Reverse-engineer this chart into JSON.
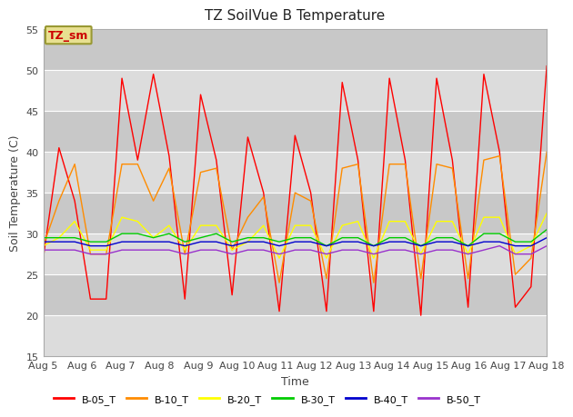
{
  "title": "TZ SoilVue B Temperature",
  "xlabel": "Time",
  "ylabel": "Soil Temperature (C)",
  "ylim": [
    15,
    55
  ],
  "xlim": [
    0,
    13
  ],
  "plot_bg_color": "#dcdcdc",
  "alt_bg_color": "#c8c8c8",
  "grid_color": "#ffffff",
  "x_tick_labels": [
    "Aug 5",
    "Aug 6",
    "Aug 7",
    "Aug 8",
    "Aug 9",
    "Aug 10",
    "Aug 11",
    "Aug 12",
    "Aug 13",
    "Aug 14",
    "Aug 15",
    "Aug 16",
    "Aug 17",
    "Aug 18"
  ],
  "legend_entries": [
    "B-05_T",
    "B-10_T",
    "B-20_T",
    "B-30_T",
    "B-40_T",
    "B-50_T"
  ],
  "line_colors": [
    "#ff0000",
    "#ff8c00",
    "#ffff00",
    "#00cc00",
    "#0000cd",
    "#9932cc"
  ],
  "annotation_text": "TZ_sm",
  "annotation_fg": "#cc0000",
  "annotation_bg": "#e8e090",
  "annotation_edge": "#999933",
  "title_fontsize": 11,
  "axis_label_fontsize": 9,
  "tick_fontsize": 8,
  "series": {
    "B05": [
      27.0,
      40.5,
      34.0,
      22.0,
      22.0,
      49.0,
      39.0,
      49.5,
      39.5,
      22.0,
      47.0,
      39.0,
      22.5,
      41.8,
      35.0,
      20.5,
      42.0,
      35.0,
      20.5,
      48.5,
      39.0,
      20.5,
      49.0,
      39.0,
      20.0,
      49.0,
      39.0,
      21.0,
      49.5,
      40.0,
      21.0,
      23.5,
      50.5
    ],
    "B10": [
      28.5,
      34.0,
      38.5,
      27.5,
      27.5,
      38.5,
      38.5,
      34.0,
      38.0,
      27.5,
      37.5,
      38.0,
      28.0,
      32.0,
      34.5,
      24.0,
      35.0,
      34.0,
      24.5,
      38.0,
      38.5,
      24.0,
      38.5,
      38.5,
      24.5,
      38.5,
      38.0,
      24.5,
      39.0,
      39.5,
      25.0,
      27.0,
      40.0
    ],
    "B20": [
      28.5,
      29.5,
      31.5,
      28.0,
      28.0,
      32.0,
      31.5,
      29.5,
      31.0,
      28.0,
      31.0,
      31.0,
      28.0,
      29.0,
      31.0,
      27.0,
      31.0,
      31.0,
      27.0,
      31.0,
      31.5,
      27.0,
      31.5,
      31.5,
      27.5,
      31.5,
      31.5,
      27.5,
      32.0,
      32.0,
      27.5,
      28.5,
      32.5
    ],
    "B30": [
      29.5,
      29.5,
      29.5,
      29.0,
      29.0,
      30.0,
      30.0,
      29.5,
      30.0,
      29.0,
      29.5,
      30.0,
      29.0,
      29.5,
      29.5,
      29.0,
      29.5,
      29.5,
      28.5,
      29.5,
      29.5,
      28.5,
      29.5,
      29.5,
      28.5,
      29.5,
      29.5,
      28.5,
      30.0,
      30.0,
      29.0,
      29.0,
      30.5
    ],
    "B40": [
      29.0,
      29.0,
      29.0,
      28.5,
      28.5,
      29.0,
      29.0,
      29.0,
      29.0,
      28.5,
      29.0,
      29.0,
      28.5,
      29.0,
      29.0,
      28.5,
      29.0,
      29.0,
      28.5,
      29.0,
      29.0,
      28.5,
      29.0,
      29.0,
      28.5,
      29.0,
      29.0,
      28.5,
      29.0,
      29.0,
      28.5,
      28.5,
      29.5
    ],
    "B50": [
      28.0,
      28.0,
      28.0,
      27.5,
      27.5,
      28.0,
      28.0,
      28.0,
      28.0,
      27.5,
      28.0,
      28.0,
      27.5,
      28.0,
      28.0,
      27.5,
      28.0,
      28.0,
      27.5,
      28.0,
      28.0,
      27.5,
      28.0,
      28.0,
      27.5,
      28.0,
      28.0,
      27.5,
      28.0,
      28.5,
      27.5,
      27.5,
      28.5
    ]
  }
}
